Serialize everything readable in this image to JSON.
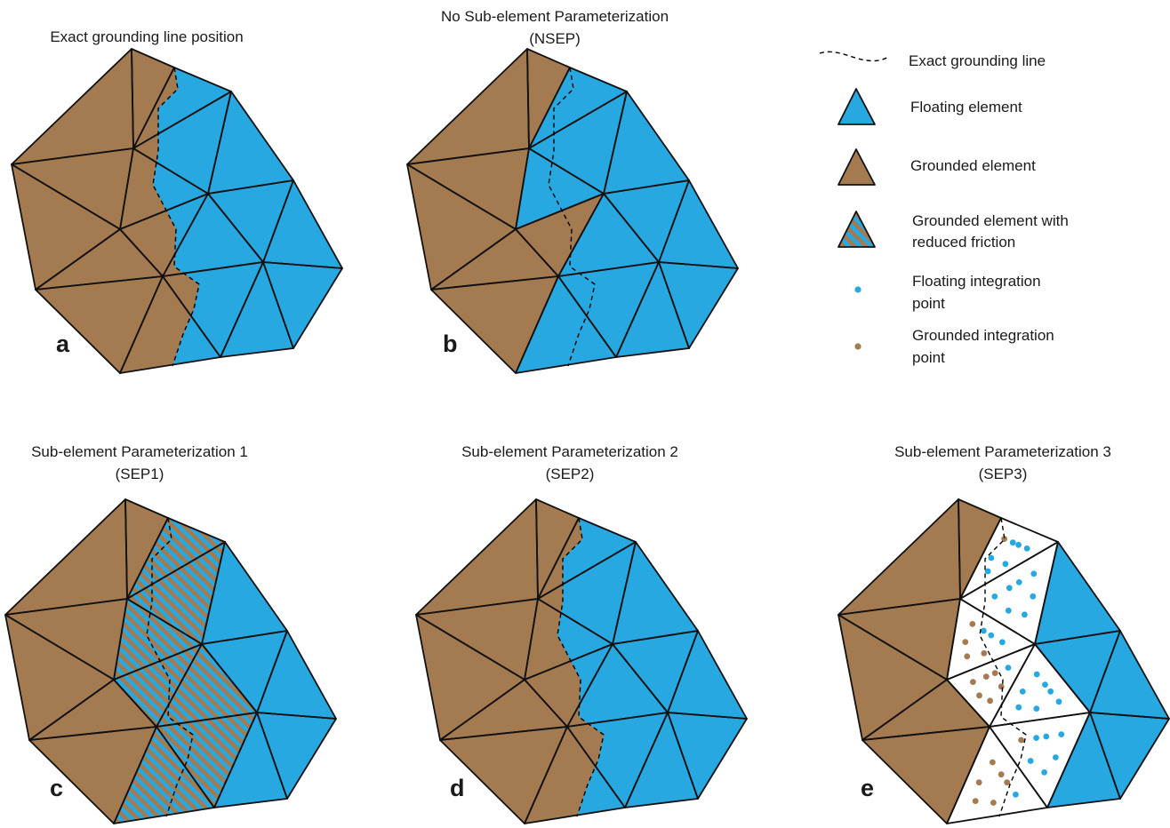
{
  "colors": {
    "grounded": "#a47a50",
    "floating": "#27a8e0",
    "outline": "#111111",
    "background": "#ffffff"
  },
  "panels": {
    "a": {
      "title_lines": [
        "Exact grounding line position"
      ],
      "letter": "a"
    },
    "b": {
      "title_lines": [
        "No Sub-element Parameterization",
        "(NSEP)"
      ],
      "letter": "b"
    },
    "c": {
      "title_lines": [
        "Sub-element Parameterization 1",
        "(SEP1)"
      ],
      "letter": "c"
    },
    "d": {
      "title_lines": [
        "Sub-element Parameterization 2",
        "(SEP2)"
      ],
      "letter": "d"
    },
    "e": {
      "title_lines": [
        "Sub-element Parameterization 3",
        "(SEP3)"
      ],
      "letter": "e"
    }
  },
  "legend": [
    {
      "icon": "dashed-line",
      "lines": [
        "Exact grounding line"
      ]
    },
    {
      "icon": "floating-triangle",
      "lines": [
        "Floating element"
      ]
    },
    {
      "icon": "grounded-triangle",
      "lines": [
        "Grounded element"
      ]
    },
    {
      "icon": "striped-triangle",
      "lines": [
        "Grounded element with",
        "reduced friction"
      ]
    },
    {
      "icon": "blue-dot",
      "lines": [
        "Floating integration",
        "point"
      ]
    },
    {
      "icon": "brown-dot",
      "lines": [
        "Grounded integration",
        "point"
      ]
    }
  ]
}
